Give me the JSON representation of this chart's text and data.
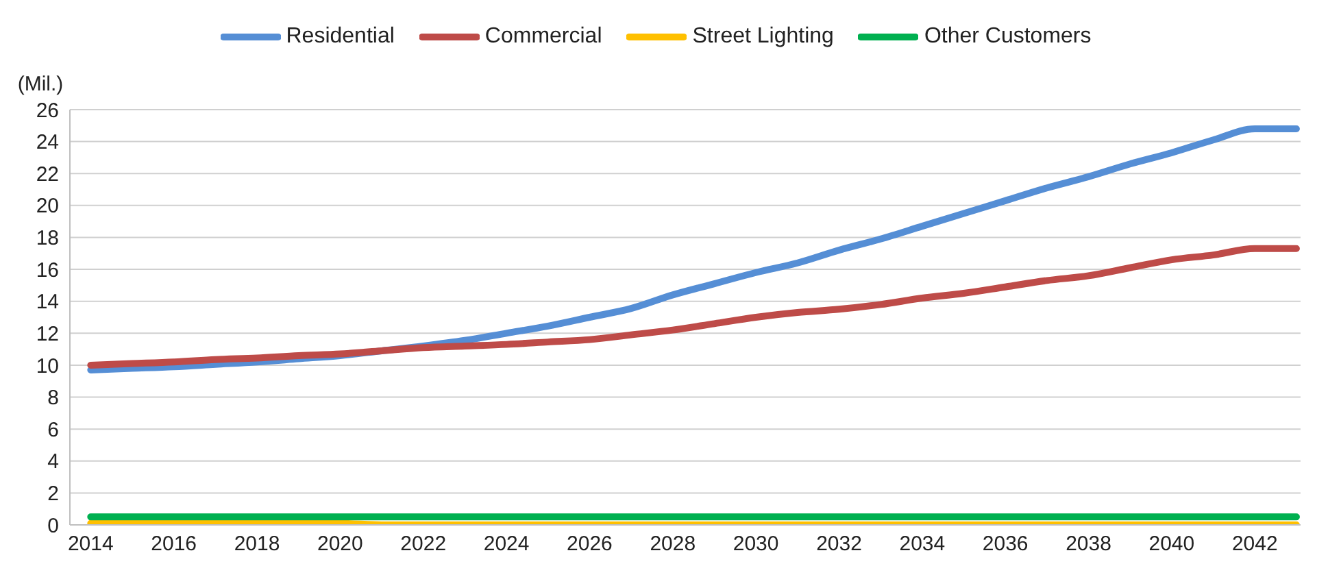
{
  "chart_data": {
    "type": "line",
    "ylabel": "(Mil.)",
    "categories": [
      "2014",
      null,
      "2016",
      null,
      "2018",
      null,
      "2020",
      null,
      "2022",
      null,
      "2024",
      null,
      "2026",
      null,
      "2028",
      null,
      "2030",
      null,
      "2032",
      null,
      "2034",
      null,
      "2036",
      null,
      "2038",
      null,
      "2040",
      null,
      "2042",
      null
    ],
    "series": [
      {
        "name": "Residential",
        "color": "#558ed5",
        "values": [
          9.7,
          9.8,
          9.9,
          10.05,
          10.2,
          10.4,
          10.6,
          10.9,
          11.2,
          11.55,
          12.0,
          12.45,
          13.0,
          13.55,
          14.4,
          15.1,
          15.8,
          16.4,
          17.2,
          17.9,
          18.7,
          19.5,
          20.3,
          21.1,
          21.8,
          22.6,
          23.3,
          24.1,
          24.8,
          24.8
        ]
      },
      {
        "name": "Commercial",
        "color": "#be4b48",
        "values": [
          10.0,
          10.1,
          10.2,
          10.35,
          10.45,
          10.6,
          10.7,
          10.9,
          11.1,
          11.2,
          11.3,
          11.45,
          11.6,
          11.9,
          12.2,
          12.6,
          13.0,
          13.3,
          13.5,
          13.8,
          14.2,
          14.5,
          14.9,
          15.3,
          15.6,
          16.1,
          16.6,
          16.9,
          17.3,
          17.3
        ]
      },
      {
        "name": "Street Lighting",
        "color": "#ffc000",
        "values": [
          0.1,
          0.1,
          0.1,
          0.1,
          0.1,
          0.1,
          0.1,
          0.0,
          0.0,
          0.0,
          0.0,
          0.0,
          0.0,
          0.0,
          0.0,
          0.0,
          0.0,
          0.0,
          0.0,
          0.0,
          0.0,
          0.0,
          0.0,
          0.0,
          0.0,
          0.0,
          0.0,
          0.0,
          0.0,
          0.0
        ]
      },
      {
        "name": "Other Customers",
        "color": "#00b050",
        "values": [
          0.5,
          0.5,
          0.5,
          0.5,
          0.5,
          0.5,
          0.5,
          0.5,
          0.5,
          0.5,
          0.5,
          0.5,
          0.5,
          0.5,
          0.5,
          0.5,
          0.5,
          0.5,
          0.5,
          0.5,
          0.5,
          0.5,
          0.5,
          0.5,
          0.5,
          0.5,
          0.5,
          0.5,
          0.5,
          0.5
        ]
      }
    ],
    "ylim": [
      0,
      26
    ],
    "yticks": [
      0,
      2,
      4,
      6,
      8,
      10,
      12,
      14,
      16,
      18,
      20,
      22,
      24,
      26
    ],
    "grid": "y",
    "legend": "top",
    "marker": "none",
    "line_style": "solid"
  }
}
